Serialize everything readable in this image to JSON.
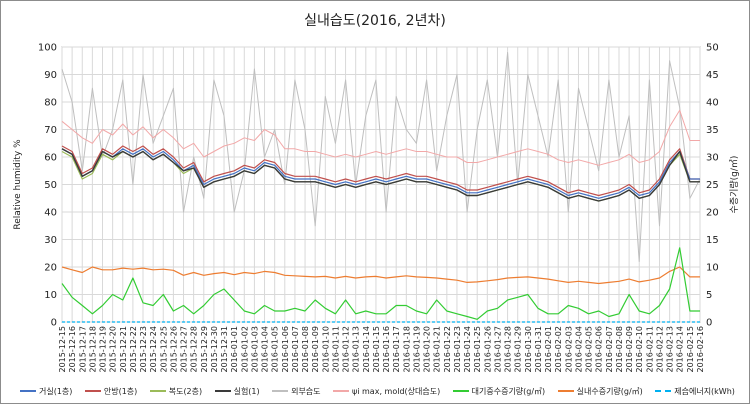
{
  "chart_data": {
    "type": "line",
    "title": "실내습도(2016, 2년차)",
    "ylabel": "Relative humidity %",
    "y2label": "수증기량(g/㎥)",
    "ylim": [
      0,
      100
    ],
    "y2lim": [
      0,
      50
    ],
    "yticks": [
      0,
      10,
      20,
      30,
      40,
      50,
      60,
      70,
      80,
      90,
      100
    ],
    "y2ticks": [
      0,
      5,
      10,
      15,
      20,
      25,
      30,
      35,
      40,
      45,
      50
    ],
    "grid": true,
    "legend_position": "bottom",
    "categories": [
      "2015-12-15",
      "2015-12-16",
      "2015-12-17",
      "2015-12-18",
      "2015-12-19",
      "2015-12-20",
      "2015-12-21",
      "2015-12-22",
      "2015-12-23",
      "2015-12-24",
      "2015-12-25",
      "2015-12-26",
      "2015-12-27",
      "2015-12-28",
      "2015-12-29",
      "2015-12-30",
      "2015-12-31",
      "2016-01-01",
      "2016-01-02",
      "2016-01-03",
      "2016-01-04",
      "2016-01-05",
      "2016-01-06",
      "2016-01-07",
      "2016-01-08",
      "2016-01-09",
      "2016-01-10",
      "2016-01-11",
      "2016-01-12",
      "2016-01-13",
      "2016-01-14",
      "2016-01-15",
      "2016-01-16",
      "2016-01-17",
      "2016-01-18",
      "2016-01-19",
      "2016-01-20",
      "2016-01-21",
      "2016-01-22",
      "2016-01-23",
      "2016-01-24",
      "2016-01-25",
      "2016-01-26",
      "2016-01-27",
      "2016-01-28",
      "2016-01-29",
      "2016-01-30",
      "2016-01-31",
      "2016-02-01",
      "2016-02-02",
      "2016-02-03",
      "2016-02-04",
      "2016-02-05",
      "2016-02-06",
      "2016-02-07",
      "2016-02-08",
      "2016-02-09",
      "2016-02-10",
      "2016-02-11",
      "2016-02-12",
      "2016-02-13",
      "2016-02-14",
      "2016-02-15",
      "2016-02-16"
    ],
    "series": [
      {
        "name": "거실(1층)",
        "axis": "left",
        "color": "#4472c4",
        "width": 1.2,
        "values": [
          63,
          61,
          53,
          55,
          62,
          60,
          63,
          61,
          63,
          60,
          62,
          59,
          55,
          57,
          50,
          52,
          53,
          54,
          56,
          55,
          58,
          57,
          53,
          52,
          52,
          52,
          51,
          50,
          51,
          50,
          51,
          52,
          51,
          52,
          53,
          52,
          52,
          51,
          50,
          49,
          47,
          47,
          48,
          49,
          50,
          51,
          52,
          51,
          50,
          48,
          46,
          47,
          46,
          45,
          46,
          47,
          49,
          46,
          47,
          51,
          58,
          62,
          52,
          52
        ]
      },
      {
        "name": "안방(1층)",
        "axis": "left",
        "color": "#c0504d",
        "width": 1.2,
        "values": [
          64,
          62,
          54,
          56,
          63,
          61,
          64,
          62,
          64,
          61,
          63,
          60,
          56,
          58,
          51,
          53,
          54,
          55,
          57,
          56,
          59,
          58,
          54,
          53,
          53,
          53,
          52,
          51,
          52,
          51,
          52,
          53,
          52,
          53,
          54,
          53,
          53,
          52,
          51,
          50,
          48,
          48,
          49,
          50,
          51,
          52,
          53,
          52,
          51,
          49,
          47,
          48,
          47,
          46,
          47,
          48,
          50,
          47,
          48,
          52,
          59,
          63,
          52,
          52
        ]
      },
      {
        "name": "복도(2층)",
        "axis": "left",
        "color": "#9bbb59",
        "width": 1.2,
        "values": [
          62,
          60,
          52,
          54,
          61,
          59,
          62,
          60,
          62,
          59,
          61,
          58,
          54,
          56,
          49,
          51,
          52,
          53,
          55,
          54,
          57,
          56,
          52,
          51,
          51,
          51,
          50,
          49,
          50,
          49,
          50,
          51,
          50,
          51,
          52,
          51,
          51,
          50,
          49,
          48,
          46,
          46,
          47,
          48,
          49,
          50,
          51,
          50,
          49,
          47,
          45,
          46,
          45,
          44,
          45,
          46,
          48,
          45,
          46,
          50,
          57,
          61,
          51,
          51
        ]
      },
      {
        "name": "실험(1)",
        "axis": "left",
        "color": "#3a3a3a",
        "width": 1.4,
        "values": [
          63,
          61,
          53,
          55,
          62,
          60,
          62,
          60,
          62,
          59,
          61,
          58,
          55,
          56,
          49,
          51,
          52,
          53,
          55,
          54,
          57,
          56,
          52,
          51,
          51,
          51,
          50,
          49,
          50,
          49,
          50,
          51,
          50,
          51,
          52,
          51,
          51,
          50,
          49,
          48,
          46,
          46,
          47,
          48,
          49,
          50,
          51,
          50,
          49,
          47,
          45,
          46,
          45,
          44,
          45,
          46,
          48,
          45,
          46,
          50,
          57,
          62,
          51,
          51
        ]
      },
      {
        "name": "외부습도",
        "axis": "left",
        "color": "#bfbfbf",
        "width": 1,
        "values": [
          92,
          80,
          55,
          85,
          60,
          70,
          88,
          50,
          90,
          65,
          75,
          85,
          40,
          60,
          45,
          88,
          75,
          40,
          55,
          92,
          60,
          70,
          50,
          88,
          70,
          35,
          82,
          65,
          88,
          50,
          75,
          88,
          40,
          82,
          70,
          65,
          88,
          55,
          75,
          90,
          40,
          70,
          88,
          60,
          98,
          50,
          90,
          75,
          60,
          88,
          40,
          85,
          70,
          55,
          88,
          60,
          75,
          22,
          88,
          35,
          95,
          78,
          45,
          52
        ]
      },
      {
        "name": "ψi max, mold(상대습도)",
        "axis": "left",
        "color": "#f2a8a8",
        "width": 1,
        "values": [
          73,
          70,
          67,
          65,
          70,
          68,
          72,
          68,
          71,
          67,
          70,
          67,
          63,
          65,
          60,
          62,
          64,
          65,
          67,
          66,
          70,
          68,
          63,
          63,
          62,
          62,
          61,
          60,
          61,
          60,
          61,
          62,
          61,
          62,
          63,
          62,
          62,
          61,
          60,
          60,
          58,
          58,
          59,
          60,
          61,
          62,
          63,
          62,
          61,
          59,
          58,
          59,
          58,
          57,
          58,
          59,
          61,
          58,
          59,
          62,
          71,
          77,
          66,
          66
        ]
      },
      {
        "name": "대기중수증기량(g/㎥)",
        "axis": "right",
        "color": "#33cc33",
        "width": 1.2,
        "values": [
          7,
          4.5,
          3,
          1.5,
          3,
          5,
          4,
          8,
          3.5,
          3,
          5,
          2,
          3,
          1.5,
          3,
          5,
          6,
          4,
          2,
          1.5,
          3,
          2,
          2,
          2.5,
          2,
          4,
          2.5,
          1.5,
          4,
          1.5,
          2,
          1.5,
          1.5,
          3,
          3,
          2,
          1.5,
          4,
          2,
          1.5,
          1,
          0.5,
          2,
          2.5,
          4,
          4.5,
          5,
          2.5,
          1.5,
          1.5,
          3,
          2.5,
          1.5,
          2,
          1,
          1.5,
          5,
          2,
          1.5,
          3,
          6,
          13.5,
          2,
          2
        ]
      },
      {
        "name": "실내수증기량(g/㎥)",
        "axis": "right",
        "color": "#ed7d31",
        "width": 1.2,
        "values": [
          10,
          9.5,
          9,
          10,
          9.5,
          9.5,
          9.8,
          9.6,
          9.8,
          9.5,
          9.6,
          9.4,
          8.5,
          9,
          8.5,
          8.8,
          9,
          8.6,
          9,
          8.8,
          9.2,
          9,
          8.5,
          8.4,
          8.3,
          8.2,
          8.3,
          8,
          8.3,
          8,
          8.2,
          8.3,
          8,
          8.2,
          8.4,
          8.2,
          8.1,
          8,
          7.8,
          7.6,
          7.2,
          7.3,
          7.5,
          7.7,
          8,
          8.1,
          8.2,
          8,
          7.8,
          7.5,
          7.2,
          7.4,
          7.2,
          7,
          7.2,
          7.4,
          7.8,
          7.3,
          7.6,
          8,
          9.2,
          10,
          8.2,
          8.2
        ]
      },
      {
        "name": "제습에너지(kWh)",
        "axis": "right",
        "color": "#00b0f0",
        "width": 1.2,
        "dashed": true,
        "values": [
          0,
          0,
          0,
          0,
          0,
          0,
          0,
          0,
          0,
          0,
          0,
          0,
          0,
          0,
          0,
          0,
          0,
          0,
          0,
          0,
          0,
          0,
          0,
          0,
          0,
          0,
          0,
          0,
          0,
          0,
          0,
          0,
          0,
          0,
          0,
          0,
          0,
          0,
          0,
          0,
          0,
          0,
          0,
          0,
          0,
          0,
          0,
          0,
          0,
          0,
          0,
          0,
          0,
          0,
          0,
          0,
          0,
          0,
          0,
          0,
          0,
          0,
          0,
          0
        ]
      }
    ]
  }
}
